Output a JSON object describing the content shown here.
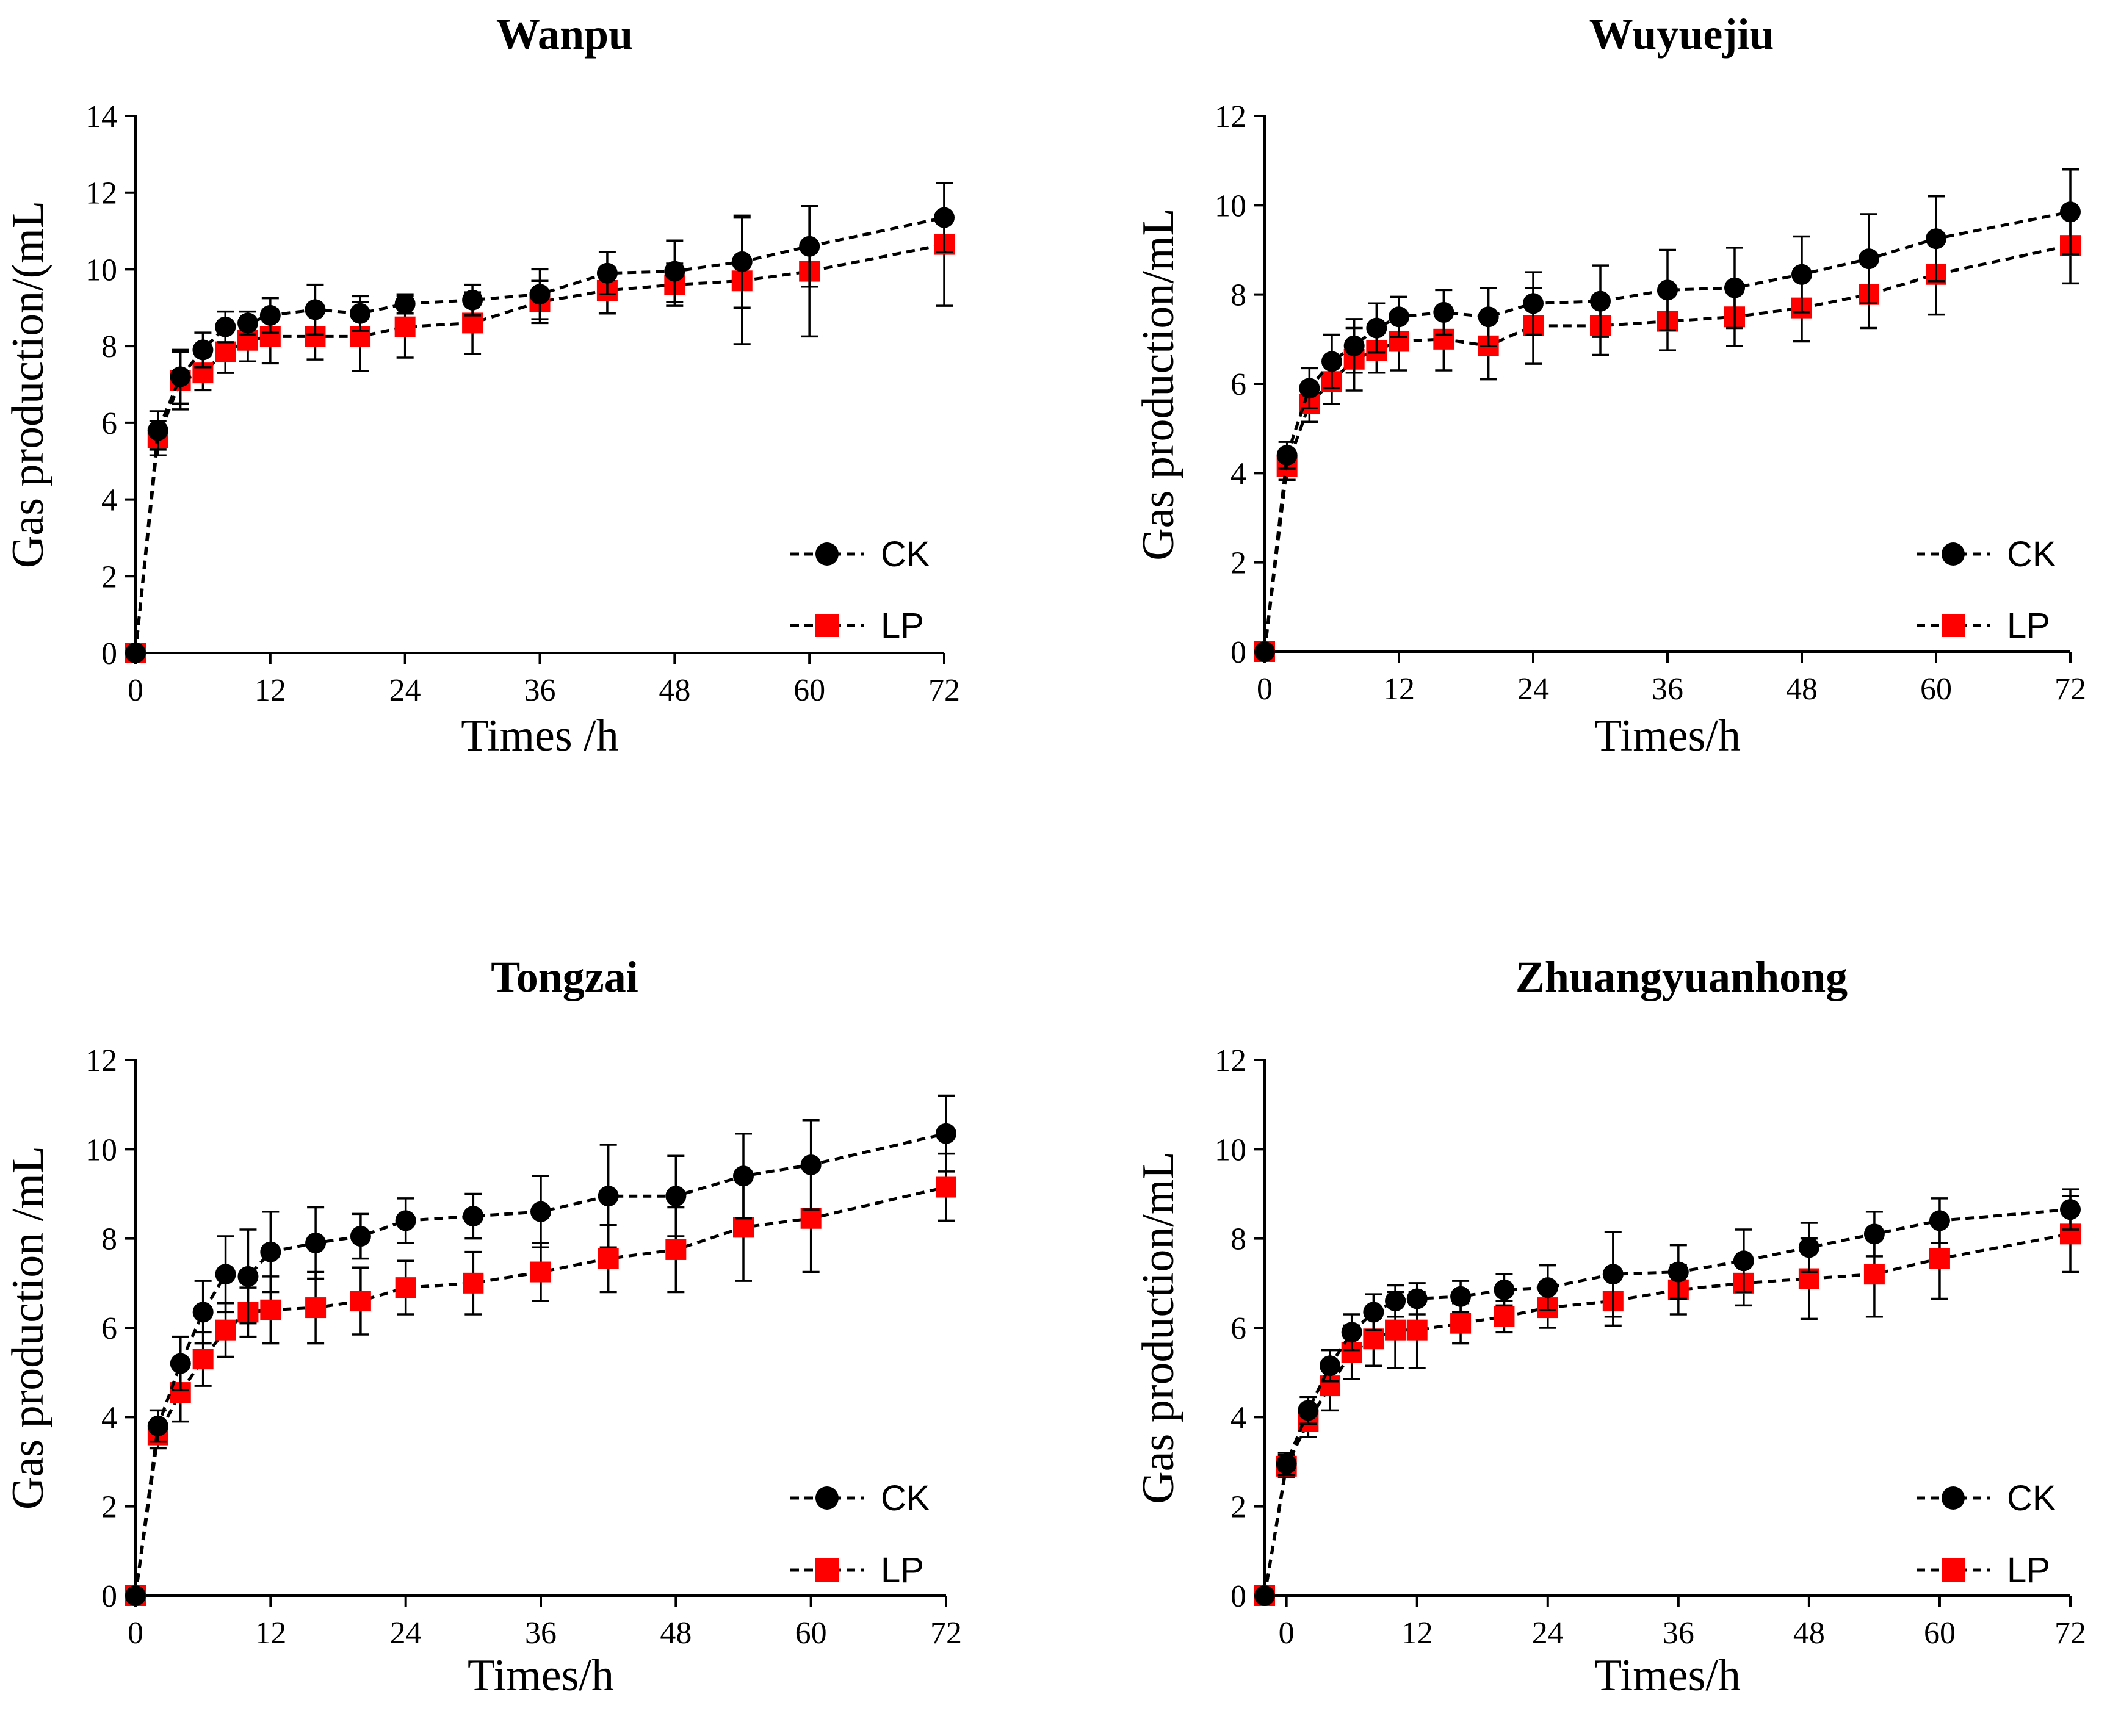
{
  "chart_data": [
    {
      "type": "line",
      "title": "Wanpu",
      "xlabel": "Times /h",
      "ylabel": "Gas production/(mL",
      "xlim": [
        0,
        72
      ],
      "ylim": [
        0,
        14
      ],
      "xticks": [
        0,
        12,
        24,
        36,
        48,
        60,
        72
      ],
      "yticks": [
        0,
        2,
        4,
        6,
        8,
        10,
        12,
        14
      ],
      "legend_position": "bottom-right",
      "series": [
        {
          "name": "CK",
          "color": "#000000",
          "marker": "circle",
          "x": [
            0,
            2,
            4,
            6,
            8,
            10,
            12,
            16,
            20,
            24,
            30,
            36,
            42,
            48,
            54,
            60,
            72
          ],
          "y": [
            0,
            5.8,
            7.2,
            7.9,
            8.5,
            8.6,
            8.8,
            8.95,
            8.85,
            9.1,
            9.2,
            9.35,
            9.9,
            9.95,
            10.2,
            10.6,
            11.35
          ],
          "err": [
            0,
            0.5,
            0.7,
            0.45,
            0.4,
            0.3,
            0.45,
            0.65,
            0.45,
            0.25,
            0.4,
            0.65,
            0.55,
            0.8,
            1.2,
            1.05,
            0.9
          ]
        },
        {
          "name": "LP",
          "color": "#ff0000",
          "marker": "square",
          "x": [
            0,
            2,
            4,
            6,
            8,
            10,
            12,
            16,
            20,
            24,
            30,
            36,
            42,
            48,
            54,
            60,
            72
          ],
          "y": [
            0,
            5.6,
            7.1,
            7.3,
            7.85,
            8.15,
            8.25,
            8.25,
            8.25,
            8.5,
            8.6,
            9.15,
            9.45,
            9.6,
            9.7,
            9.95,
            10.65
          ],
          "err": [
            0,
            0.45,
            0.75,
            0.45,
            0.55,
            0.55,
            0.7,
            0.6,
            0.9,
            0.8,
            0.8,
            0.55,
            0.6,
            0.55,
            1.65,
            1.7,
            1.6
          ]
        }
      ]
    },
    {
      "type": "line",
      "title": "Wuyuejiu",
      "xlabel": "Times/h",
      "ylabel": "Gas production/mL",
      "xlim": [
        0,
        72
      ],
      "ylim": [
        0,
        12
      ],
      "xticks": [
        0,
        12,
        24,
        36,
        48,
        60,
        72
      ],
      "yticks": [
        0,
        2,
        4,
        6,
        8,
        10,
        12
      ],
      "legend_position": "bottom-right",
      "series": [
        {
          "name": "CK",
          "color": "#000000",
          "marker": "circle",
          "x": [
            0,
            2,
            4,
            6,
            8,
            10,
            12,
            16,
            20,
            24,
            30,
            36,
            42,
            48,
            54,
            60,
            72
          ],
          "y": [
            0,
            4.4,
            5.9,
            6.5,
            6.85,
            7.25,
            7.5,
            7.6,
            7.5,
            7.8,
            7.85,
            8.1,
            8.15,
            8.45,
            8.8,
            9.25,
            9.85
          ],
          "err": [
            0,
            0.3,
            0.45,
            0.6,
            0.6,
            0.55,
            0.45,
            0.5,
            0.65,
            0.7,
            0.8,
            0.9,
            0.9,
            0.85,
            1.0,
            0.95,
            0.95
          ]
        },
        {
          "name": "LP",
          "color": "#ff0000",
          "marker": "square",
          "x": [
            0,
            2,
            4,
            6,
            8,
            10,
            12,
            16,
            20,
            24,
            30,
            36,
            42,
            48,
            54,
            60,
            72
          ],
          "y": [
            0,
            4.15,
            5.55,
            6.05,
            6.55,
            6.75,
            6.95,
            7.0,
            6.85,
            7.3,
            7.3,
            7.4,
            7.5,
            7.7,
            8.0,
            8.45,
            9.1
          ],
          "err": [
            0,
            0.3,
            0.4,
            0.5,
            0.7,
            0.5,
            0.65,
            0.7,
            0.75,
            0.85,
            0.65,
            0.65,
            0.65,
            0.75,
            0.75,
            0.9,
            0.85
          ]
        }
      ]
    },
    {
      "type": "line",
      "title": "Tongzai",
      "xlabel": "Times/h",
      "ylabel": "Gas production /mL",
      "xlim": [
        0,
        72
      ],
      "ylim": [
        0,
        12
      ],
      "xticks": [
        0,
        12,
        24,
        36,
        48,
        60,
        72
      ],
      "yticks": [
        0,
        2,
        4,
        6,
        8,
        10,
        12
      ],
      "legend_position": "bottom-right",
      "series": [
        {
          "name": "CK",
          "color": "#000000",
          "marker": "circle",
          "x": [
            0,
            2,
            4,
            6,
            8,
            10,
            12,
            16,
            20,
            24,
            30,
            36,
            42,
            48,
            54,
            60,
            72
          ],
          "y": [
            0,
            3.8,
            5.2,
            6.35,
            7.2,
            7.15,
            7.7,
            7.9,
            8.05,
            8.4,
            8.5,
            8.6,
            8.95,
            8.95,
            9.4,
            9.65,
            10.35
          ],
          "err": [
            0,
            0.35,
            0.6,
            0.7,
            0.85,
            1.05,
            0.9,
            0.8,
            0.5,
            0.5,
            0.5,
            0.8,
            1.15,
            0.9,
            0.95,
            1.0,
            0.85
          ]
        },
        {
          "name": "LP",
          "color": "#ff0000",
          "marker": "square",
          "x": [
            0,
            2,
            4,
            6,
            8,
            10,
            12,
            16,
            20,
            24,
            30,
            36,
            42,
            48,
            54,
            60,
            72
          ],
          "y": [
            0,
            3.6,
            4.55,
            5.3,
            5.95,
            6.35,
            6.4,
            6.45,
            6.6,
            6.9,
            7.0,
            7.25,
            7.55,
            7.75,
            8.25,
            8.45,
            9.15
          ],
          "err": [
            0,
            0.3,
            0.65,
            0.6,
            0.6,
            0.55,
            0.75,
            0.8,
            0.75,
            0.6,
            0.7,
            0.65,
            0.75,
            0.95,
            1.2,
            1.2,
            0.75
          ]
        }
      ]
    },
    {
      "type": "line",
      "title": "Zhuangyuanhong",
      "xlabel": "Times/h",
      "ylabel": "Gas production/mL",
      "xlim": [
        -2,
        72
      ],
      "ylim": [
        0,
        12
      ],
      "xticks": [
        0,
        12,
        24,
        36,
        48,
        60,
        72
      ],
      "yticks": [
        0,
        2,
        4,
        6,
        8,
        10,
        12
      ],
      "legend_position": "bottom-right",
      "series": [
        {
          "name": "CK",
          "color": "#000000",
          "marker": "circle",
          "x": [
            -2,
            0,
            2,
            4,
            6,
            8,
            10,
            12,
            16,
            20,
            24,
            30,
            36,
            42,
            48,
            54,
            60,
            72
          ],
          "y": [
            0,
            2.95,
            4.15,
            5.15,
            5.9,
            6.35,
            6.6,
            6.65,
            6.7,
            6.85,
            6.9,
            7.2,
            7.25,
            7.5,
            7.8,
            8.1,
            8.4,
            8.65
          ],
          "err": [
            0,
            0.25,
            0.3,
            0.35,
            0.4,
            0.4,
            0.35,
            0.35,
            0.35,
            0.35,
            0.5,
            0.95,
            0.6,
            0.7,
            0.55,
            0.5,
            0.5,
            0.45
          ]
        },
        {
          "name": "LP",
          "color": "#ff0000",
          "marker": "square",
          "x": [
            -2,
            0,
            2,
            4,
            6,
            8,
            10,
            12,
            16,
            20,
            24,
            30,
            36,
            42,
            48,
            54,
            60,
            72
          ],
          "y": [
            0,
            2.9,
            3.9,
            4.7,
            5.45,
            5.75,
            5.95,
            5.95,
            6.1,
            6.25,
            6.45,
            6.6,
            6.85,
            7.0,
            7.1,
            7.2,
            7.55,
            8.1
          ],
          "err": [
            0,
            0.25,
            0.35,
            0.55,
            0.6,
            0.6,
            0.85,
            0.85,
            0.45,
            0.35,
            0.45,
            0.55,
            0.55,
            0.5,
            0.9,
            0.95,
            0.9,
            0.85
          ]
        }
      ]
    }
  ]
}
